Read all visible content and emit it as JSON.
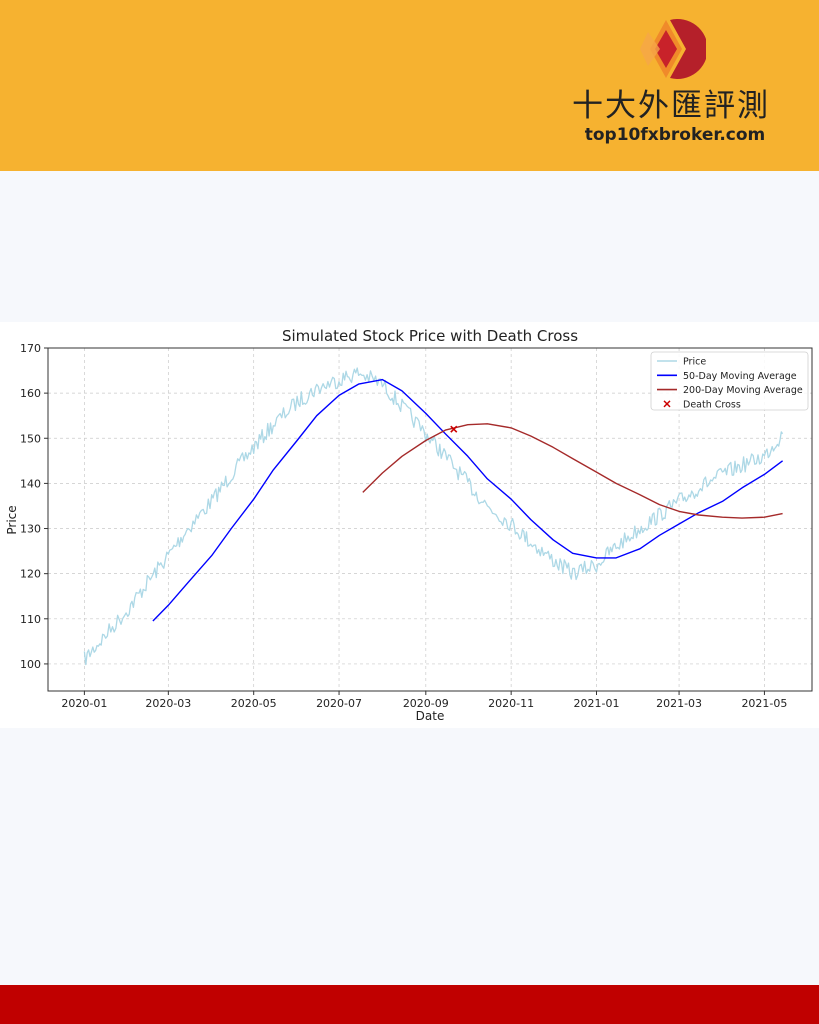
{
  "brand": {
    "name": "十大外匯評測",
    "url": "top10fxbroker.com",
    "colors": {
      "header": "#f6b230",
      "footer": "#c00000",
      "logo_dark": "#b5202a",
      "logo_light": "#f08a2a"
    }
  },
  "chart_data": {
    "type": "line",
    "title": "Simulated Stock Price with Death Cross",
    "xlabel": "Date",
    "ylabel": "Price",
    "xlim": [
      "2019-12-06",
      "2021-06-04"
    ],
    "ylim": [
      94,
      170
    ],
    "grid": true,
    "legend_position": "top-right",
    "x_ticks": [
      "2020-01",
      "2020-03",
      "2020-05",
      "2020-07",
      "2020-09",
      "2020-11",
      "2021-01",
      "2021-03",
      "2021-05"
    ],
    "y_ticks": [
      100,
      110,
      120,
      130,
      140,
      150,
      160,
      170
    ],
    "series": [
      {
        "name": "Price",
        "color": "#add8e6",
        "x": [
          "2020-01-01",
          "2020-01-15",
          "2020-02-01",
          "2020-02-15",
          "2020-03-01",
          "2020-03-15",
          "2020-04-01",
          "2020-04-15",
          "2020-05-01",
          "2020-05-15",
          "2020-06-01",
          "2020-06-15",
          "2020-07-01",
          "2020-07-15",
          "2020-08-01",
          "2020-08-15",
          "2020-09-01",
          "2020-09-15",
          "2020-10-01",
          "2020-10-15",
          "2020-11-01",
          "2020-11-15",
          "2020-12-01",
          "2020-12-15",
          "2021-01-01",
          "2021-01-15",
          "2021-02-01",
          "2021-02-15",
          "2021-03-01",
          "2021-03-15",
          "2021-04-01",
          "2021-04-15",
          "2021-05-01",
          "2021-05-14"
        ],
        "values": [
          101,
          106,
          112,
          118,
          124,
          130,
          136,
          142,
          148,
          153,
          158,
          161,
          163,
          164.5,
          162,
          157,
          151,
          146,
          140,
          135,
          131,
          127,
          123,
          120,
          122,
          126,
          130,
          133,
          136,
          139,
          142,
          144,
          146,
          151
        ]
      },
      {
        "name": "50-Day Moving Average",
        "color": "#0000ff",
        "x": [
          "2020-02-19",
          "2020-03-01",
          "2020-03-15",
          "2020-04-01",
          "2020-04-15",
          "2020-05-01",
          "2020-05-15",
          "2020-06-01",
          "2020-06-15",
          "2020-07-01",
          "2020-07-15",
          "2020-08-01",
          "2020-08-15",
          "2020-09-01",
          "2020-09-15",
          "2020-10-01",
          "2020-10-15",
          "2020-11-01",
          "2020-11-15",
          "2020-12-01",
          "2020-12-15",
          "2021-01-01",
          "2021-01-15",
          "2021-02-01",
          "2021-02-15",
          "2021-03-01",
          "2021-03-15",
          "2021-04-01",
          "2021-04-15",
          "2021-05-01",
          "2021-05-14"
        ],
        "values": [
          109.5,
          113,
          118,
          124,
          130,
          136.5,
          143,
          149.5,
          155,
          159.5,
          162,
          163,
          160.5,
          155.5,
          151,
          146,
          141,
          136.5,
          132,
          127.5,
          124.5,
          123.5,
          123.5,
          125.5,
          128.5,
          131,
          133.5,
          136,
          139,
          142,
          145
        ]
      },
      {
        "name": "200-Day Moving Average",
        "color": "#a52a2a",
        "x": [
          "2020-07-18",
          "2020-08-01",
          "2020-08-15",
          "2020-09-01",
          "2020-09-15",
          "2020-10-01",
          "2020-10-15",
          "2020-11-01",
          "2020-11-15",
          "2020-12-01",
          "2020-12-15",
          "2021-01-01",
          "2021-01-15",
          "2021-02-01",
          "2021-02-15",
          "2021-03-01",
          "2021-03-15",
          "2021-04-01",
          "2021-04-15",
          "2021-05-01",
          "2021-05-14"
        ],
        "values": [
          138,
          142.3,
          146,
          149.5,
          151.8,
          153,
          153.2,
          152.3,
          150.5,
          148,
          145.5,
          142.5,
          140,
          137.5,
          135.3,
          133.8,
          133,
          132.5,
          132.3,
          132.5,
          133.3
        ]
      }
    ],
    "markers": [
      {
        "name": "Death Cross",
        "x": "2020-09-21",
        "y": 152,
        "color": "#cc0000",
        "marker": "x"
      }
    ]
  }
}
